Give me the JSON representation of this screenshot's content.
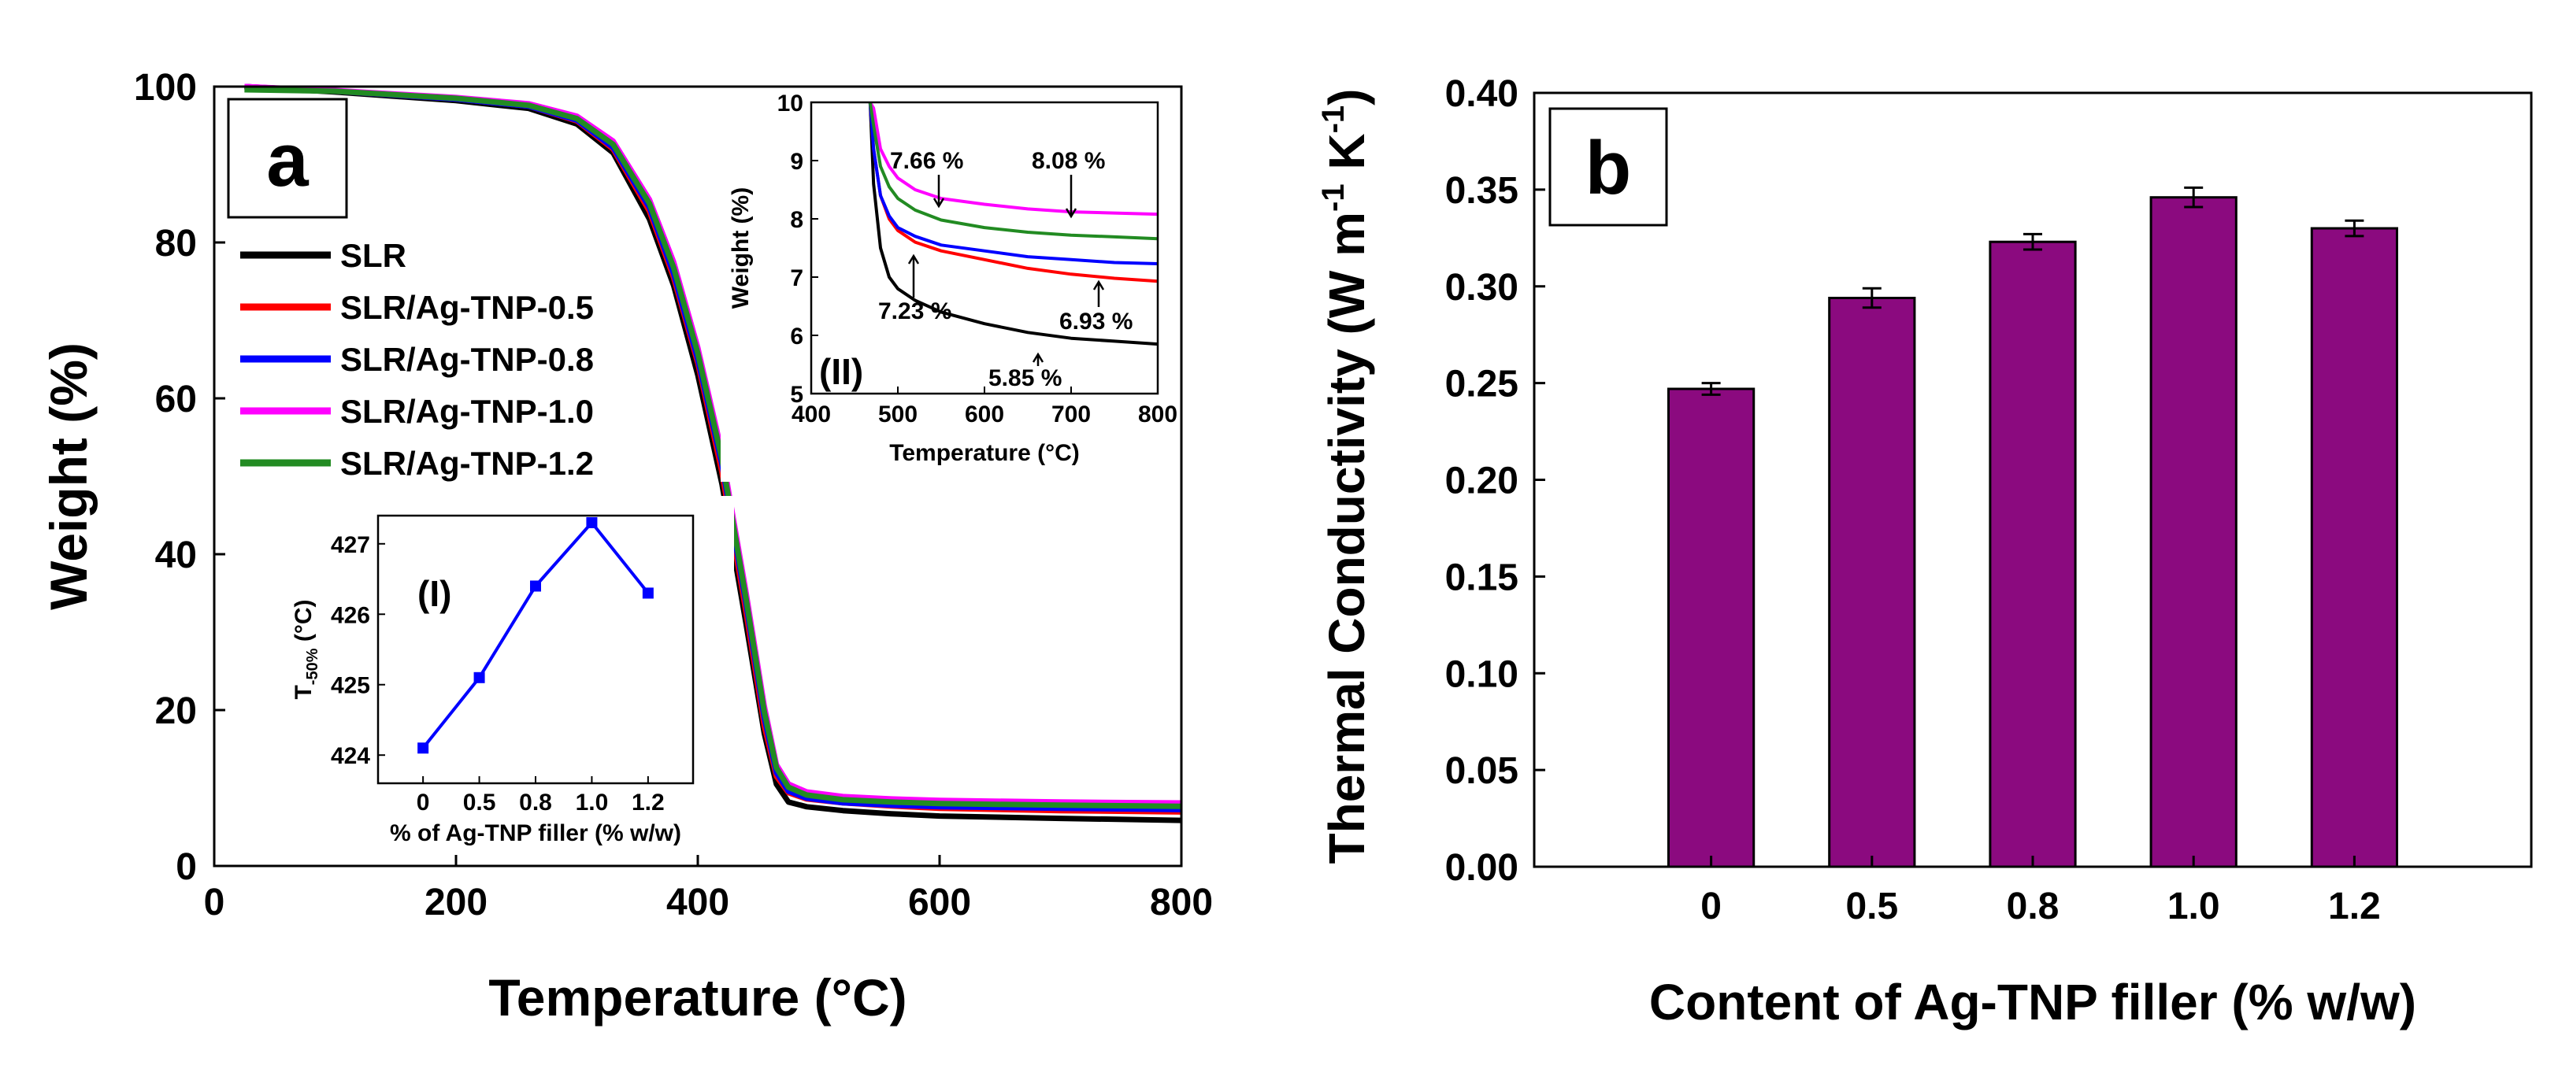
{
  "chart_data": [
    {
      "panel": "a",
      "type": "line",
      "panel_label": "a",
      "xlabel": "Temperature (",
      "xlabel_unit": "°C",
      "xlabel_close": ")",
      "ylabel": "Weight (%)",
      "xlim": [
        0,
        800
      ],
      "ylim": [
        0,
        100
      ],
      "xticks": [
        0,
        200,
        400,
        600,
        800
      ],
      "yticks": [
        0,
        20,
        40,
        60,
        80,
        100
      ],
      "legend_position": "left",
      "series": [
        {
          "name": "SLR",
          "color": "#000000",
          "x": [
            25,
            100,
            200,
            260,
            300,
            330,
            360,
            380,
            400,
            420,
            440,
            455,
            465,
            475,
            490,
            520,
            560,
            600,
            700,
            800
          ],
          "y": [
            100,
            99.3,
            98.2,
            97.2,
            95.2,
            91.5,
            83,
            74.5,
            63,
            49,
            31,
            17,
            10.5,
            8.2,
            7.6,
            7.1,
            6.7,
            6.4,
            6.1,
            5.85
          ]
        },
        {
          "name": "SLR/Ag-TNP-0.5",
          "color": "#ff0000",
          "x": [
            25,
            100,
            200,
            260,
            300,
            330,
            360,
            380,
            400,
            420,
            440,
            455,
            465,
            475,
            490,
            520,
            560,
            600,
            700,
            800
          ],
          "y": [
            100,
            99.4,
            98.4,
            97.5,
            95.6,
            92,
            84,
            75.5,
            64.5,
            50.5,
            32.5,
            18,
            11.5,
            9.4,
            8.6,
            8.1,
            7.7,
            7.4,
            7.1,
            6.93
          ]
        },
        {
          "name": "SLR/Ag-TNP-0.8",
          "color": "#0000ff",
          "x": [
            25,
            100,
            200,
            260,
            300,
            330,
            360,
            380,
            400,
            420,
            440,
            455,
            465,
            475,
            490,
            520,
            560,
            600,
            700,
            800
          ],
          "y": [
            100,
            99.4,
            98.4,
            97.5,
            95.7,
            92.2,
            84.5,
            76,
            65,
            51.5,
            33.5,
            19,
            12,
            9.6,
            8.7,
            8.1,
            7.8,
            7.6,
            7.4,
            7.23
          ]
        },
        {
          "name": "SLR/Ag-TNP-1.0",
          "color": "#ff00ff",
          "x": [
            25,
            100,
            200,
            260,
            300,
            330,
            360,
            380,
            400,
            420,
            440,
            455,
            465,
            475,
            490,
            520,
            560,
            600,
            700,
            800
          ],
          "y": [
            100,
            99.5,
            98.6,
            97.8,
            96.2,
            93,
            85.5,
            77.5,
            66.5,
            53,
            35,
            20.5,
            13,
            10.5,
            9.5,
            8.9,
            8.6,
            8.4,
            8.2,
            8.08
          ]
        },
        {
          "name": "SLR/Ag-TNP-1.2",
          "color": "#228b22",
          "x": [
            25,
            100,
            200,
            260,
            300,
            330,
            360,
            380,
            400,
            420,
            440,
            455,
            465,
            475,
            490,
            520,
            560,
            600,
            700,
            800
          ],
          "y": [
            99.6,
            99.4,
            98.5,
            97.6,
            95.9,
            92.6,
            85,
            76.8,
            65.8,
            52.2,
            34.2,
            19.8,
            12.6,
            10.1,
            9.1,
            8.5,
            8.2,
            8,
            7.8,
            7.66
          ]
        }
      ],
      "insets": [
        {
          "label": "(I)",
          "type": "line",
          "xlabel": "% of Ag-TNP filler (% w/w)",
          "ylabel_main": "T",
          "ylabel_sub": "-50%",
          "ylabel_unit": " (",
          "ylabel_unit_deg": "°C",
          "ylabel_close": ")",
          "categories": [
            "0",
            "0.5",
            "0.8",
            "1.0",
            "1.2"
          ],
          "values": [
            424.1,
            425.1,
            426.4,
            427.3,
            426.3
          ],
          "ylim": [
            423.6,
            427.4
          ],
          "yticks": [
            424,
            425,
            426,
            427
          ],
          "color": "#0000ff"
        },
        {
          "label": "(II)",
          "type": "line",
          "xlabel": "Temperature (",
          "xlabel_unit": "°C",
          "xlabel_close": ")",
          "ylabel": "Weight (%)",
          "xlim": [
            400,
            800
          ],
          "ylim": [
            5,
            10
          ],
          "xticks": [
            400,
            500,
            600,
            700,
            800
          ],
          "yticks": [
            5,
            6,
            7,
            8,
            9,
            10
          ],
          "annotations": [
            {
              "text": "7.66 %",
              "series": "SLR/Ag-TNP-1.2"
            },
            {
              "text": "8.08 %",
              "series": "SLR/Ag-TNP-1.0"
            },
            {
              "text": "7.23 %",
              "series": "SLR/Ag-TNP-0.8"
            },
            {
              "text": "6.93 %",
              "series": "SLR/Ag-TNP-0.5"
            },
            {
              "text": "5.85 %",
              "series": "SLR"
            }
          ],
          "series": [
            {
              "name": "SLR",
              "color": "#000000",
              "x": [
                468,
                472,
                480,
                490,
                500,
                520,
                550,
                600,
                650,
                700,
                750,
                800
              ],
              "y": [
                10,
                8.6,
                7.5,
                7.0,
                6.8,
                6.6,
                6.4,
                6.2,
                6.05,
                5.95,
                5.9,
                5.85
              ]
            },
            {
              "name": "SLR/Ag-TNP-0.5",
              "color": "#ff0000",
              "x": [
                468,
                472,
                480,
                490,
                500,
                520,
                550,
                600,
                650,
                700,
                750,
                800
              ],
              "y": [
                10,
                9.2,
                8.4,
                8.0,
                7.8,
                7.6,
                7.45,
                7.3,
                7.15,
                7.05,
                6.98,
                6.93
              ]
            },
            {
              "name": "SLR/Ag-TNP-0.8",
              "color": "#0000ff",
              "x": [
                468,
                472,
                480,
                490,
                500,
                520,
                550,
                600,
                650,
                700,
                750,
                800
              ],
              "y": [
                10,
                9.2,
                8.4,
                8.05,
                7.85,
                7.7,
                7.55,
                7.45,
                7.35,
                7.3,
                7.25,
                7.23
              ]
            },
            {
              "name": "SLR/Ag-TNP-1.0",
              "color": "#ff00ff",
              "x": [
                468,
                472,
                480,
                490,
                500,
                520,
                550,
                600,
                650,
                700,
                750,
                800
              ],
              "y": [
                10,
                9.9,
                9.2,
                8.9,
                8.7,
                8.5,
                8.35,
                8.25,
                8.17,
                8.12,
                8.1,
                8.08
              ]
            },
            {
              "name": "SLR/Ag-TNP-1.2",
              "color": "#228b22",
              "x": [
                468,
                472,
                480,
                490,
                500,
                520,
                550,
                600,
                650,
                700,
                750,
                800
              ],
              "y": [
                10,
                9.6,
                8.9,
                8.55,
                8.35,
                8.15,
                7.98,
                7.85,
                7.77,
                7.72,
                7.69,
                7.66
              ]
            }
          ]
        }
      ]
    },
    {
      "panel": "b",
      "type": "bar",
      "panel_label": "b",
      "xlabel": "Content of Ag-TNP filler (% w/w)",
      "ylabel": "Thermal Conductivity (W m",
      "ylabel_sup1": "-1",
      "ylabel_mid": " K",
      "ylabel_sup2": "-1",
      "ylabel_close": ")",
      "categories": [
        "0",
        "0.5",
        "0.8",
        "1.0",
        "1.2"
      ],
      "values": [
        0.247,
        0.294,
        0.323,
        0.346,
        0.33
      ],
      "errors": [
        0.003,
        0.005,
        0.004,
        0.005,
        0.004
      ],
      "ylim": [
        0,
        0.4
      ],
      "yticks": [
        "0.00",
        "0.05",
        "0.10",
        "0.15",
        "0.20",
        "0.25",
        "0.30",
        "0.35",
        "0.40"
      ],
      "bar_color": "#8b0a7f"
    }
  ]
}
